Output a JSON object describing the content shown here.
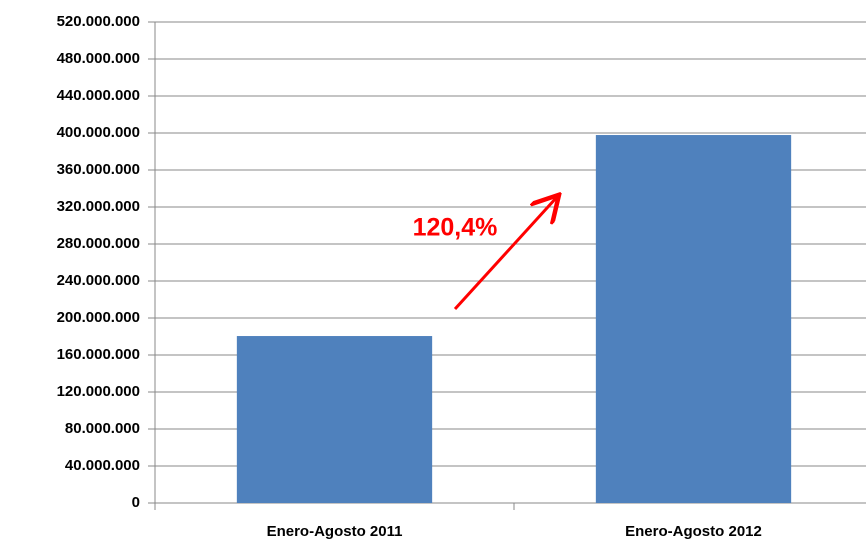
{
  "chart_data": {
    "type": "bar",
    "categories": [
      "Enero-Agosto 2011",
      "Enero-Agosto 2012"
    ],
    "values": [
      180500000,
      397800000
    ],
    "color": "#4f81bd",
    "annotation": "120,4%",
    "annotation_color": "#ff0000",
    "ylim": [
      0,
      520000000
    ],
    "yticks": [
      0,
      {
        "value": 40000000,
        "label": "40.000.000"
      },
      {
        "value": 80000000,
        "label": "80.000.000"
      },
      {
        "value": 120000000,
        "label": "120.000.000"
      },
      {
        "value": 160000000,
        "label": "160.000.000"
      },
      {
        "value": 200000000,
        "label": "200.000.000"
      },
      {
        "value": 240000000,
        "label": "240.000.000"
      },
      {
        "value": 280000000,
        "label": "280.000.000"
      },
      {
        "value": 320000000,
        "label": "320.000.000"
      },
      {
        "value": 360000000,
        "label": "360.000.000"
      },
      {
        "value": 400000000,
        "label": "400.000.000"
      },
      {
        "value": 440000000,
        "label": "440.000.000"
      },
      {
        "value": 480000000,
        "label": "480.000.000"
      },
      {
        "value": 520000000,
        "label": "520.000.000"
      }
    ],
    "grid": true
  }
}
